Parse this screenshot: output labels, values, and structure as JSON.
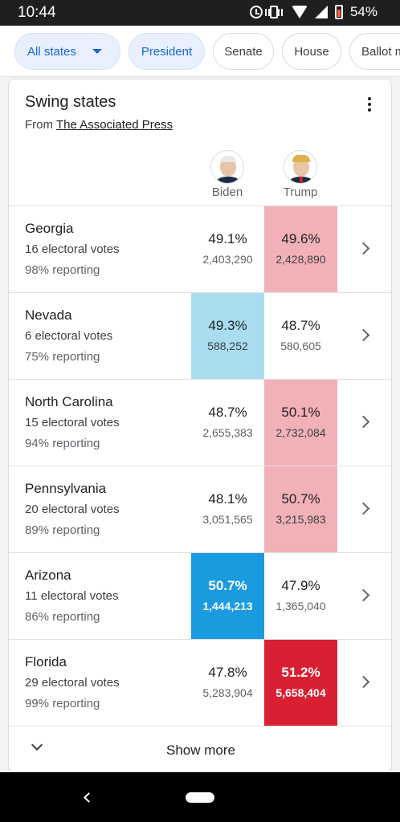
{
  "status_bar": {
    "time": "10:44",
    "battery": "54%"
  },
  "filters": {
    "chips": [
      {
        "label": "All states",
        "active": true,
        "dropdown": true
      },
      {
        "label": "President",
        "active": true
      },
      {
        "label": "Senate",
        "active": false
      },
      {
        "label": "House",
        "active": false
      },
      {
        "label": "Ballot m",
        "active": false
      }
    ]
  },
  "card": {
    "title": "Swing states",
    "source_prefix": "From",
    "source_name": "The Associated Press",
    "candidates": [
      {
        "name": "Biden",
        "color": "#1a73e8"
      },
      {
        "name": "Trump",
        "color": "#d93025"
      }
    ],
    "rows": [
      {
        "state": "Georgia",
        "ev": "16 electoral votes",
        "reporting": "98% reporting",
        "biden": {
          "pct": "49.1%",
          "votes": "2,403,290"
        },
        "trump": {
          "pct": "49.6%",
          "votes": "2,428,890"
        },
        "leader": "trump",
        "shade": "light"
      },
      {
        "state": "Nevada",
        "ev": "6 electoral votes",
        "reporting": "75% reporting",
        "biden": {
          "pct": "49.3%",
          "votes": "588,252"
        },
        "trump": {
          "pct": "48.7%",
          "votes": "580,605"
        },
        "leader": "biden",
        "shade": "light"
      },
      {
        "state": "North Carolina",
        "ev": "15 electoral votes",
        "reporting": "94% reporting",
        "biden": {
          "pct": "48.7%",
          "votes": "2,655,383"
        },
        "trump": {
          "pct": "50.1%",
          "votes": "2,732,084"
        },
        "leader": "trump",
        "shade": "light"
      },
      {
        "state": "Pennsylvania",
        "ev": "20 electoral votes",
        "reporting": "89% reporting",
        "biden": {
          "pct": "48.1%",
          "votes": "3,051,565"
        },
        "trump": {
          "pct": "50.7%",
          "votes": "3,215,983"
        },
        "leader": "trump",
        "shade": "light"
      },
      {
        "state": "Arizona",
        "ev": "11 electoral votes",
        "reporting": "86% reporting",
        "biden": {
          "pct": "50.7%",
          "votes": "1,444,213"
        },
        "trump": {
          "pct": "47.9%",
          "votes": "1,365,040"
        },
        "leader": "biden",
        "shade": "dark"
      },
      {
        "state": "Florida",
        "ev": "29 electoral votes",
        "reporting": "99% reporting",
        "biden": {
          "pct": "47.8%",
          "votes": "5,283,904"
        },
        "trump": {
          "pct": "51.2%",
          "votes": "5,658,404"
        },
        "leader": "trump",
        "shade": "dark"
      }
    ],
    "show_more": "Show more"
  },
  "colors": {
    "biden_light": "#aadcf0",
    "biden_dark": "#1a9be0",
    "trump_light": "#f2b1b6",
    "trump_dark": "#d92033"
  }
}
